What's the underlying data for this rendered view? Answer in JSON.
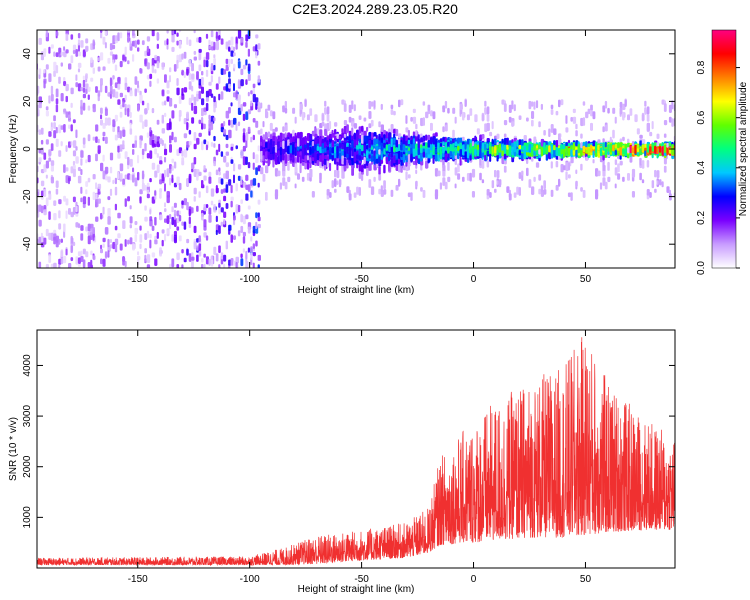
{
  "title": "C2E3.2024.289.23.05.R20",
  "chart_data": [
    {
      "type": "heatmap",
      "xlabel": "Height of straight line (km)",
      "ylabel": "Frequency (Hz)",
      "xlim": [
        -195,
        90
      ],
      "ylim": [
        -50,
        50
      ],
      "xticks": [
        -150,
        -100,
        -50,
        0,
        50
      ],
      "yticks": [
        -40,
        -20,
        0,
        20,
        40
      ],
      "colorbar": {
        "label": "Normalized spectral amplitude",
        "range": [
          0,
          0.95
        ],
        "ticks": [
          "0.0",
          "0.2",
          "0.4",
          "0.6",
          "0.8"
        ],
        "colors": [
          "#ffffff",
          "#c89cff",
          "#7a00ff",
          "#0000ff",
          "#00c8ff",
          "#00ff80",
          "#60ff00",
          "#ffff00",
          "#ff8000",
          "#ff0000",
          "#ff0080"
        ]
      },
      "description_points": [
        {
          "x": -150,
          "freq_center": 0,
          "freq_spread": 50,
          "amplitude": 0.12
        },
        {
          "x": -95,
          "freq_center": 0,
          "freq_spread": 5,
          "amplitude": 0.25
        },
        {
          "x": -50,
          "freq_center": 0,
          "freq_spread": 7,
          "amplitude": 0.35
        },
        {
          "x": -20,
          "freq_center": 0,
          "freq_spread": 4,
          "amplitude": 0.45
        },
        {
          "x": 30,
          "freq_center": 0,
          "freq_spread": 2,
          "amplitude": 0.6
        },
        {
          "x": 70,
          "freq_center": 0,
          "freq_spread": 1.5,
          "amplitude": 0.85
        }
      ]
    },
    {
      "type": "line",
      "xlabel": "Height of straight line (km)",
      "ylabel": "SNR (10 * v/v)",
      "xlim": [
        -195,
        90
      ],
      "ylim": [
        0,
        4700
      ],
      "xticks": [
        -150,
        -100,
        -50,
        0,
        50
      ],
      "yticks": [
        1000,
        2000,
        3000,
        4000
      ],
      "series_color": "#f03030",
      "envelope": {
        "x": [
          -195,
          -100,
          -85,
          -70,
          -50,
          -30,
          -20,
          -15,
          -5,
          0,
          10,
          25,
          40,
          50,
          60,
          75,
          90
        ],
        "y_low": [
          60,
          60,
          60,
          80,
          150,
          200,
          300,
          450,
          500,
          500,
          550,
          600,
          600,
          650,
          700,
          750,
          750
        ],
        "y_high": [
          200,
          230,
          400,
          650,
          750,
          900,
          1200,
          2200,
          2700,
          2900,
          3300,
          3700,
          4000,
          4700,
          3700,
          3000,
          2600
        ]
      }
    }
  ]
}
